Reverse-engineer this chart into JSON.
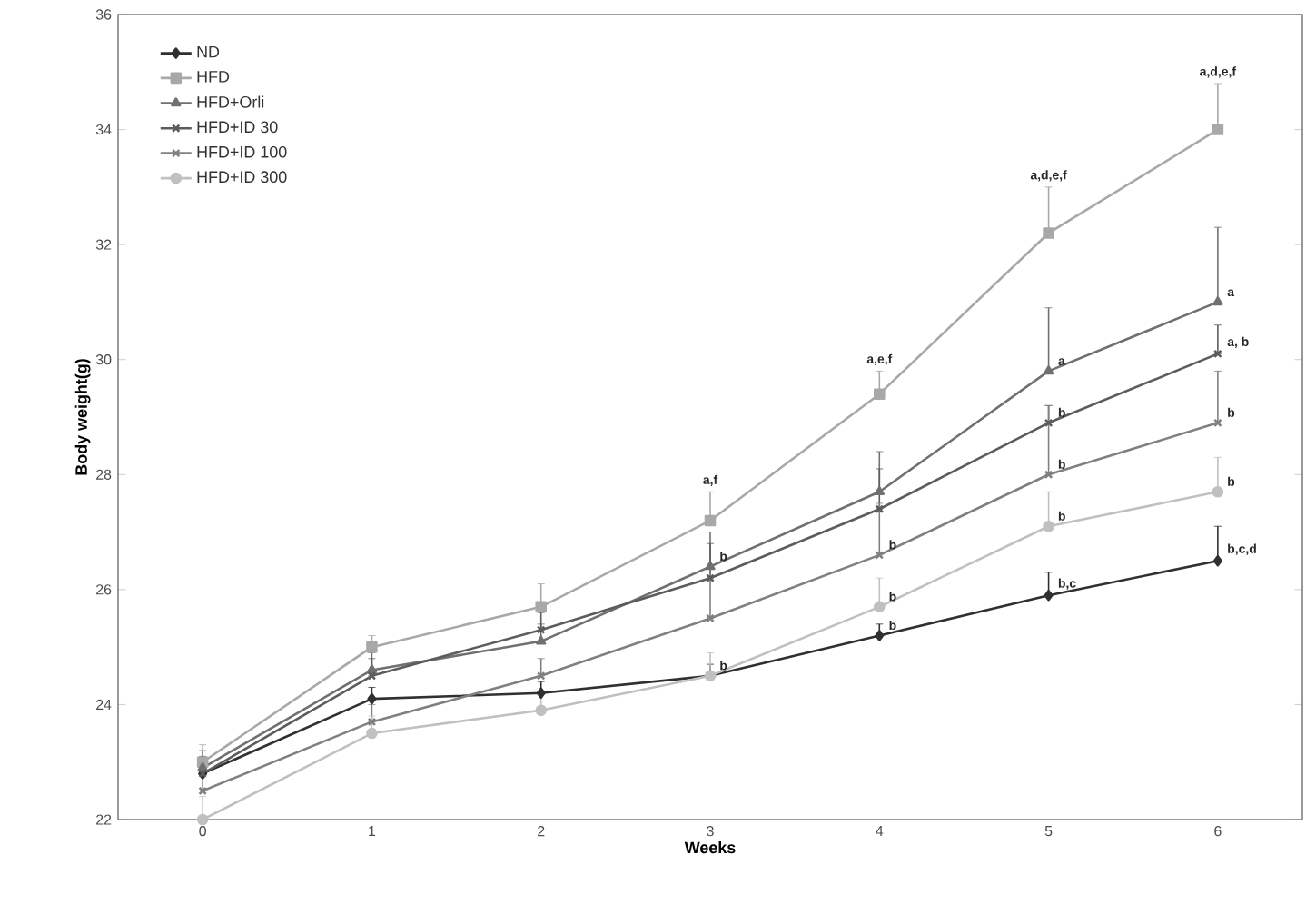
{
  "chart_data": {
    "type": "line",
    "xlabel": "Weeks",
    "ylabel": "Body weight(g)",
    "categories": [
      "0",
      "1",
      "2",
      "3",
      "4",
      "5",
      "6"
    ],
    "ylim": [
      22,
      36
    ],
    "yticks": [
      22,
      24,
      26,
      28,
      30,
      32,
      34,
      36
    ],
    "grid": false,
    "legend": "top left",
    "line_style": "solid",
    "series": [
      {
        "name": "ND",
        "color": "#303030",
        "marker": "diamond",
        "values": [
          22.8,
          24.1,
          24.2,
          24.5,
          25.2,
          25.9,
          26.5
        ],
        "errors": [
          [
            22.8,
            23.0
          ],
          [
            24.1,
            24.3
          ],
          [
            24.2,
            24.4
          ],
          [
            24.5,
            24.7
          ],
          [
            25.2,
            25.4
          ],
          [
            25.9,
            26.3
          ],
          [
            26.5,
            27.1
          ]
        ]
      },
      {
        "name": "HFD",
        "color": "#a8a8a8",
        "marker": "square",
        "values": [
          23.0,
          25.0,
          25.7,
          27.2,
          29.4,
          32.2,
          34.0
        ],
        "errors": [
          [
            23.0,
            23.3
          ],
          [
            25.0,
            25.2
          ],
          [
            25.7,
            26.1
          ],
          [
            27.2,
            27.7
          ],
          [
            29.4,
            29.8
          ],
          [
            32.2,
            33.0
          ],
          [
            34.0,
            34.8
          ]
        ]
      },
      {
        "name": "HFD+Orli",
        "color": "#707070",
        "marker": "triangle",
        "values": [
          22.9,
          24.6,
          25.1,
          26.4,
          27.7,
          29.8,
          31.0
        ],
        "errors": [
          [
            22.9,
            23.2
          ],
          [
            24.6,
            24.9
          ],
          [
            25.1,
            25.4
          ],
          [
            26.4,
            27.0
          ],
          [
            27.7,
            28.4
          ],
          [
            29.8,
            30.9
          ],
          [
            31.0,
            32.3
          ]
        ]
      },
      {
        "name": "HFD+ID 30",
        "color": "#5c5c5c",
        "marker": "cross",
        "values": [
          22.8,
          24.5,
          25.3,
          26.2,
          27.4,
          28.9,
          30.1
        ],
        "errors": [
          [
            22.8,
            23.1
          ],
          [
            24.5,
            24.8
          ],
          [
            25.3,
            25.6
          ],
          [
            26.2,
            26.8
          ],
          [
            27.4,
            28.1
          ],
          [
            28.9,
            29.2
          ],
          [
            30.1,
            30.6
          ]
        ]
      },
      {
        "name": "HFD+ID 100",
        "color": "#808080",
        "marker": "cross",
        "values": [
          22.5,
          23.7,
          24.5,
          25.5,
          26.6,
          28.0,
          28.9
        ],
        "errors": [
          [
            22.5,
            22.8
          ],
          [
            23.7,
            24.0
          ],
          [
            24.5,
            24.8
          ],
          [
            25.5,
            26.2
          ],
          [
            26.6,
            27.5
          ],
          [
            28.0,
            29.2
          ],
          [
            28.9,
            29.8
          ]
        ]
      },
      {
        "name": "HFD+ID 300",
        "color": "#c0c0c0",
        "marker": "circle",
        "values": [
          22.0,
          23.5,
          23.9,
          24.5,
          25.7,
          27.1,
          27.7
        ],
        "errors": [
          [
            22.0,
            22.4
          ],
          [
            23.5,
            23.8
          ],
          [
            23.9,
            24.2
          ],
          [
            24.5,
            24.9
          ],
          [
            25.7,
            26.2
          ],
          [
            27.1,
            27.7
          ],
          [
            27.7,
            28.3
          ]
        ]
      }
    ],
    "annotations": [
      {
        "text": "a,f",
        "x": "3",
        "y": 27.2
      },
      {
        "text": "b",
        "x": "3",
        "y": 26.4
      },
      {
        "text": "b",
        "x": "3",
        "y": 24.5
      },
      {
        "text": "a,e,f",
        "x": "4",
        "y": 29.4
      },
      {
        "text": "b",
        "x": "4",
        "y": 26.6
      },
      {
        "text": "b",
        "x": "4",
        "y": 25.7
      },
      {
        "text": "b",
        "x": "4",
        "y": 25.2
      },
      {
        "text": "a,d,e,f",
        "x": "5",
        "y": 33.0
      },
      {
        "text": "a",
        "x": "5",
        "y": 29.8
      },
      {
        "text": "b",
        "x": "5",
        "y": 28.9
      },
      {
        "text": "b",
        "x": "5",
        "y": 28.0
      },
      {
        "text": "b",
        "x": "5",
        "y": 27.1
      },
      {
        "text": "b,c",
        "x": "5",
        "y": 25.9
      },
      {
        "text": "a,d,e,f",
        "x": "6",
        "y": 34.8
      },
      {
        "text": "a",
        "x": "6",
        "y": 31.0
      },
      {
        "text": "a, b",
        "x": "6",
        "y": 30.1
      },
      {
        "text": "b",
        "x": "6",
        "y": 28.9
      },
      {
        "text": "b",
        "x": "6",
        "y": 27.7
      },
      {
        "text": "b,c,d",
        "x": "6",
        "y": 26.5
      }
    ]
  }
}
